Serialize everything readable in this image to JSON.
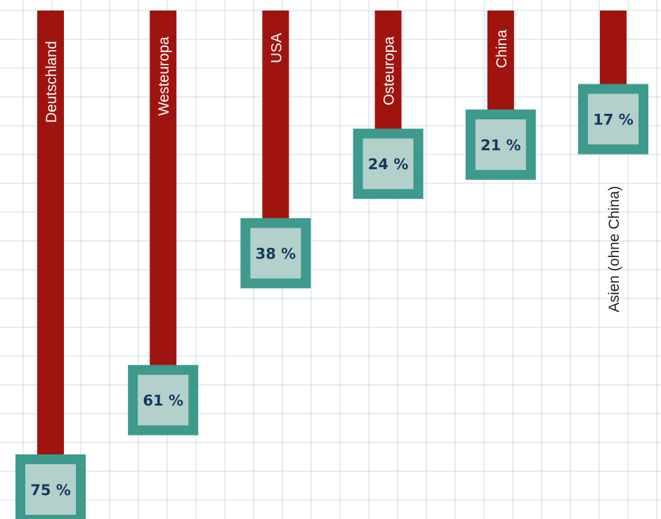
{
  "chart_data": {
    "type": "bar",
    "orientation": "vertical",
    "categories": [
      "Deutschland",
      "Westeuropa",
      "USA",
      "Osteuropa",
      "China",
      "Asien (ohne China)"
    ],
    "values": [
      75,
      61,
      38,
      24,
      21,
      17
    ],
    "value_labels": [
      "75 %",
      "61 %",
      "38 %",
      "24 %",
      "21 %",
      "17 %"
    ],
    "title": "",
    "xlabel": "",
    "ylabel": "",
    "grid": true,
    "legend": "none"
  },
  "colors": {
    "bar": "#a0140f",
    "box_border": "#3e9a8d",
    "box_fill": "#b4d0cb",
    "value_text": "#163a5f",
    "grid": "#c9dcdc",
    "label_on_bar": "#ffffff",
    "label_outside": "#222222"
  }
}
